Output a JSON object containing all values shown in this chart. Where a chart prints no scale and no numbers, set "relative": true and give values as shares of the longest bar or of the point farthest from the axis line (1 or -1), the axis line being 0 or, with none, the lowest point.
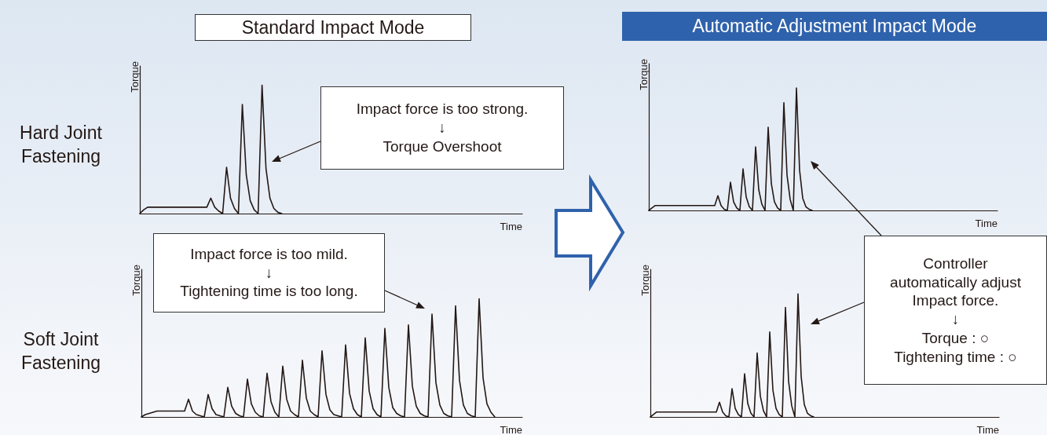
{
  "chart_data": [
    {
      "type": "line",
      "title": "Standard Impact Mode",
      "xlabel": "Time",
      "ylabel": "Torque",
      "relative": true,
      "line_style": "solid",
      "annotations": [
        "Hard Joint Fastening",
        "Impact force is too strong.\n↓\nTorque Overshoot"
      ],
      "categories": [
        null,
        null,
        null,
        null,
        null,
        null,
        null,
        null,
        null,
        null,
        null,
        null,
        null,
        null,
        null,
        null,
        null,
        null,
        null,
        null,
        null,
        null,
        null,
        null,
        null,
        null,
        null,
        null,
        null,
        null,
        null,
        null,
        null,
        null,
        null,
        null,
        null,
        null,
        null,
        null,
        null,
        null,
        null,
        null,
        null,
        null,
        null,
        null,
        null,
        null,
        null,
        null,
        null,
        null,
        null,
        null,
        null,
        null,
        null,
        null,
        null,
        null,
        null,
        null,
        null,
        null,
        null,
        null,
        null,
        null,
        null,
        null,
        null,
        null,
        null,
        null,
        null,
        null,
        null,
        null,
        null,
        null,
        null,
        null,
        null,
        null,
        null,
        null,
        null,
        null,
        null,
        null,
        null,
        null,
        null,
        null,
        null,
        null
      ],
      "series": [
        {
          "color": "#231815",
          "values": [
            0,
            0.03,
            0.05,
            0.05,
            0.05,
            0.05,
            0.05,
            0.05,
            0.05,
            0.05,
            0.05,
            0.05,
            0.05,
            0.05,
            0.05,
            0.05,
            0.05,
            0.05,
            0.12,
            0.05,
            0.02,
            0,
            0.36,
            0.12,
            0.04,
            0,
            0.85,
            0.3,
            0.1,
            0.03,
            0,
            1,
            0.35,
            0.12,
            0.04,
            0.01,
            0,
            null,
            null,
            null,
            null,
            null,
            null,
            null,
            null,
            null,
            null,
            null,
            null,
            null,
            null,
            null,
            null,
            null,
            null,
            null,
            null,
            null,
            null,
            null,
            null,
            null,
            null,
            null,
            null,
            null,
            null,
            null,
            null,
            null,
            null,
            null,
            null,
            null,
            null,
            null,
            null,
            null,
            null,
            null,
            null,
            null,
            null,
            null,
            null,
            null,
            null,
            null,
            null,
            null,
            null,
            null,
            null,
            null,
            null,
            null,
            null,
            null
          ]
        }
      ]
    },
    {
      "type": "line",
      "xlabel": "Time",
      "ylabel": "Torque",
      "relative": true,
      "line_style": "solid",
      "annotations": [
        "Soft Joint Fastening",
        "Impact force is too mild.\n↓\nTightening time is too long."
      ],
      "categories": [
        null,
        null,
        null,
        null,
        null,
        null,
        null,
        null,
        null,
        null,
        null,
        null,
        null,
        null,
        null,
        null,
        null,
        null,
        null,
        null,
        null,
        null,
        null,
        null,
        null,
        null,
        null,
        null,
        null,
        null,
        null,
        null,
        null,
        null,
        null,
        null,
        null,
        null,
        null,
        null,
        null,
        null,
        null,
        null,
        null,
        null,
        null,
        null,
        null,
        null,
        null,
        null,
        null,
        null,
        null,
        null,
        null,
        null,
        null,
        null,
        null,
        null,
        null,
        null,
        null,
        null,
        null,
        null,
        null,
        null,
        null,
        null,
        null,
        null,
        null,
        null,
        null,
        null,
        null,
        null,
        null,
        null,
        null,
        null,
        null,
        null,
        null,
        null,
        null,
        null,
        null,
        null,
        null,
        null,
        null,
        null,
        null,
        null
      ],
      "series": [
        {
          "color": "#231815",
          "values": [
            0,
            0.02,
            0.03,
            0.04,
            0.05,
            0.05,
            0.05,
            0.05,
            0.05,
            0.05,
            0.05,
            0.05,
            0.15,
            0.05,
            0.02,
            0.01,
            0,
            0.19,
            0.07,
            0.02,
            0.01,
            0,
            0.25,
            0.09,
            0.03,
            0.01,
            0,
            0.32,
            0.11,
            0.04,
            0.01,
            0,
            0.37,
            0.13,
            0.04,
            0,
            0.43,
            0.15,
            0.05,
            0.02,
            0,
            0.48,
            0.16,
            0.05,
            0.02,
            0,
            0.56,
            0.19,
            0.06,
            0.02,
            0.01,
            0,
            0.61,
            0.2,
            0.07,
            0.02,
            0,
            0.67,
            0.22,
            0.07,
            0.02,
            0,
            0.75,
            0.25,
            0.08,
            0.03,
            0.01,
            0,
            0.78,
            0.26,
            0.09,
            0.03,
            0.01,
            0,
            0.87,
            0.29,
            0.1,
            0.03,
            0.01,
            0,
            0.94,
            0.31,
            0.1,
            0.03,
            0.01,
            0,
            1,
            0.33,
            0.11,
            0.04,
            0,
            null,
            null,
            null,
            null,
            null,
            null,
            null
          ]
        }
      ]
    },
    {
      "type": "line",
      "title": "Automatic Adjustment Impact Mode",
      "xlabel": "Time",
      "ylabel": "Torque",
      "relative": true,
      "line_style": "solid",
      "categories": [
        null,
        null,
        null,
        null,
        null,
        null,
        null,
        null,
        null,
        null,
        null,
        null,
        null,
        null,
        null,
        null,
        null,
        null,
        null,
        null,
        null,
        null,
        null,
        null,
        null,
        null,
        null,
        null,
        null,
        null,
        null,
        null,
        null,
        null,
        null,
        null,
        null,
        null,
        null,
        null,
        null,
        null,
        null,
        null,
        null,
        null,
        null,
        null,
        null,
        null,
        null,
        null,
        null,
        null,
        null,
        null,
        null,
        null,
        null,
        null,
        null,
        null,
        null,
        null,
        null,
        null,
        null,
        null,
        null,
        null,
        null,
        null,
        null,
        null,
        null,
        null,
        null,
        null,
        null,
        null,
        null,
        null,
        null,
        null,
        null,
        null,
        null,
        null,
        null,
        null,
        null,
        null,
        null,
        null,
        null,
        null,
        null,
        null,
        null,
        null,
        null,
        null,
        null,
        null,
        null,
        null,
        null,
        null,
        null,
        null,
        null,
        null
      ],
      "series": [
        {
          "color": "#231815",
          "values": [
            0,
            0.02,
            0.04,
            0.04,
            0.04,
            0.04,
            0.04,
            0.04,
            0.04,
            0.04,
            0.04,
            0.04,
            0.04,
            0.04,
            0.04,
            0.04,
            0.04,
            0.04,
            0.04,
            0.04,
            0.04,
            0.04,
            0.12,
            0.04,
            0.01,
            0,
            0.23,
            0.07,
            0.02,
            0,
            0.34,
            0.11,
            0.03,
            0,
            0.52,
            0.17,
            0.05,
            0,
            0.68,
            0.22,
            0.07,
            0.02,
            0,
            0.88,
            0.29,
            0.09,
            0,
            1,
            0.33,
            0.1,
            0.03,
            0.01,
            0,
            null,
            null,
            null,
            null,
            null,
            null,
            null,
            null,
            null,
            null,
            null,
            null,
            null,
            null,
            null,
            null,
            null,
            null,
            null,
            null,
            null,
            null,
            null,
            null,
            null,
            null,
            null,
            null,
            null,
            null,
            null,
            null,
            null,
            null,
            null,
            null,
            null,
            null,
            null,
            null,
            null,
            null,
            null,
            null,
            null,
            null,
            null,
            null,
            null,
            null,
            null,
            null,
            null,
            null,
            null,
            null,
            null,
            null,
            null
          ]
        }
      ]
    },
    {
      "type": "line",
      "xlabel": "Time",
      "ylabel": "Torque",
      "relative": true,
      "line_style": "solid",
      "annotations": [
        "Controller\nautomatically adjust\nImpact force.\n↓\nTorque : ○\nTightening time : ○"
      ],
      "categories": [
        null,
        null,
        null,
        null,
        null,
        null,
        null,
        null,
        null,
        null,
        null,
        null,
        null,
        null,
        null,
        null,
        null,
        null,
        null,
        null,
        null,
        null,
        null,
        null,
        null,
        null,
        null,
        null,
        null,
        null,
        null,
        null,
        null,
        null,
        null,
        null,
        null,
        null,
        null,
        null,
        null,
        null,
        null,
        null,
        null,
        null,
        null,
        null,
        null,
        null,
        null,
        null,
        null,
        null,
        null,
        null,
        null,
        null,
        null,
        null,
        null,
        null,
        null,
        null,
        null,
        null,
        null,
        null,
        null,
        null,
        null,
        null,
        null,
        null,
        null,
        null,
        null,
        null,
        null,
        null,
        null,
        null,
        null,
        null,
        null,
        null,
        null,
        null,
        null,
        null,
        null,
        null,
        null,
        null,
        null,
        null,
        null,
        null,
        null,
        null,
        null,
        null,
        null,
        null,
        null,
        null,
        null,
        null,
        null,
        null,
        null,
        null
      ],
      "series": [
        {
          "color": "#231815",
          "values": [
            0,
            0.02,
            0.04,
            0.04,
            0.04,
            0.04,
            0.04,
            0.04,
            0.04,
            0.04,
            0.04,
            0.04,
            0.04,
            0.04,
            0.04,
            0.04,
            0.04,
            0.04,
            0.04,
            0.04,
            0.04,
            0.04,
            0.12,
            0.04,
            0.01,
            0,
            0.23,
            0.07,
            0.02,
            0,
            0.35,
            0.11,
            0.03,
            0,
            0.52,
            0.17,
            0.05,
            0,
            0.69,
            0.22,
            0.07,
            0.02,
            0,
            0.89,
            0.29,
            0.09,
            0,
            1,
            0.33,
            0.1,
            0.03,
            0.01,
            0,
            null,
            null,
            null,
            null,
            null,
            null,
            null,
            null,
            null,
            null,
            null,
            null,
            null,
            null,
            null,
            null,
            null,
            null,
            null,
            null,
            null,
            null,
            null,
            null,
            null,
            null,
            null,
            null,
            null,
            null,
            null,
            null,
            null,
            null,
            null,
            null,
            null,
            null,
            null,
            null,
            null,
            null,
            null,
            null,
            null,
            null,
            null,
            null,
            null,
            null,
            null,
            null,
            null,
            null,
            null,
            null,
            null,
            null,
            null
          ]
        }
      ]
    }
  ]
}
